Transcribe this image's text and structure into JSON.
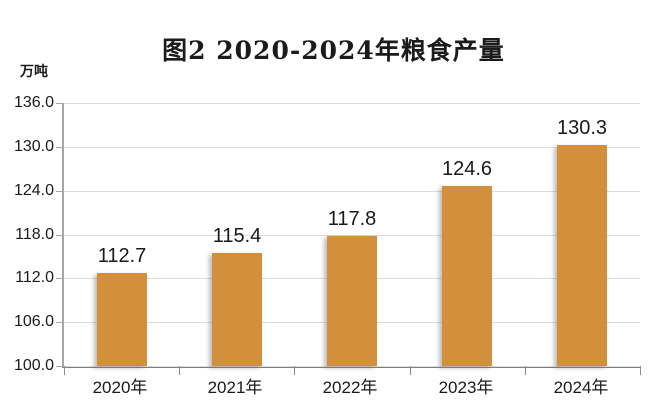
{
  "title": "图2  2020-2024年粮食产量",
  "chart_data": {
    "type": "bar",
    "title": "图2  2020-2024年粮食产量",
    "unit_label": "万吨",
    "categories": [
      "2020年",
      "2021年",
      "2022年",
      "2023年",
      "2024年"
    ],
    "values": [
      112.7,
      115.4,
      117.8,
      124.6,
      130.3
    ],
    "value_labels": [
      "112.7",
      "115.4",
      "117.8",
      "124.6",
      "130.3"
    ],
    "ylim": [
      100.0,
      136.0
    ],
    "yticks": [
      136.0,
      130.0,
      124.0,
      118.0,
      112.0,
      106.0,
      100.0
    ],
    "ytick_labels": [
      "136.0",
      "130.0",
      "124.0",
      "118.0",
      "112.0",
      "106.0",
      "100.0"
    ],
    "grid": true,
    "legend_position": "none",
    "bar_color": "#d28f3c",
    "grid_color": "#dcdcdc",
    "axis_color": "#7f7f7f",
    "text_color": "#1a1a1a"
  }
}
